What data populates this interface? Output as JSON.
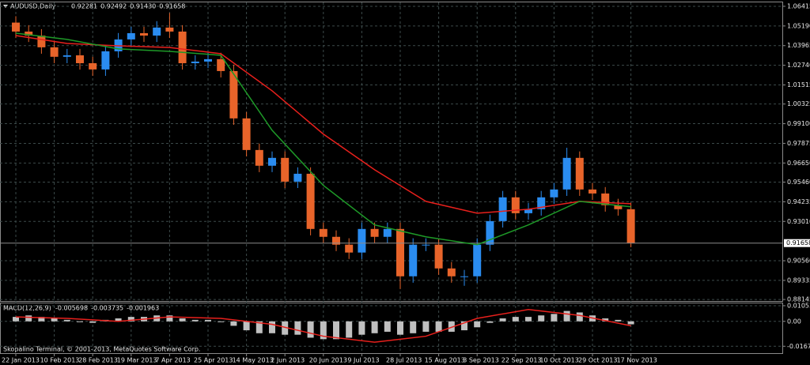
{
  "chart_data": [
    {
      "type": "candlestick",
      "title": "AUDUSD,Daily",
      "header_values": [
        "0.92281",
        "0.92492",
        "0.91430",
        "0.91658"
      ],
      "categories": [
        "22 Jan 2013",
        null,
        null,
        "10 Feb 2013",
        null,
        null,
        "28 Feb 2013",
        null,
        null,
        "19 Mar 2013",
        null,
        null,
        "7 Apr 2013",
        null,
        null,
        "25 Apr 2013",
        null,
        null,
        "14 May 2013",
        null,
        null,
        "2 Jun 2013",
        null,
        null,
        "20 Jun 2013",
        null,
        null,
        "9 Jul 2013",
        null,
        null,
        "28 Jul 2013",
        null,
        null,
        "15 Aug 2013",
        null,
        null,
        "3 Sep 2013",
        null,
        null,
        "22 Sep 2013",
        null,
        null,
        "10 Oct 2013",
        null,
        null,
        "29 Oct 2013",
        null,
        null,
        "17 Nov 2013"
      ],
      "open": [
        1.054,
        1.0484,
        1.0459,
        1.0386,
        1.0327,
        1.0336,
        1.0287,
        1.0248,
        1.0361,
        1.0435,
        1.0474,
        1.0459,
        1.0509,
        1.0484,
        1.0287,
        1.0297,
        1.0312,
        1.0238,
        0.9943,
        0.9746,
        0.9648,
        0.9697,
        0.9549,
        0.9598,
        0.9254,
        0.9205,
        0.9156,
        0.9107,
        0.9254,
        0.9205,
        0.9254,
        0.8959,
        0.9156,
        0.9156,
        0.9008,
        0.8959,
        0.8959,
        0.9156,
        0.9303,
        0.9451,
        0.9352,
        0.9377,
        0.9451,
        0.95,
        0.9697,
        0.95,
        0.9475,
        0.9402,
        0.9377
      ],
      "high": [
        1.058,
        1.0524,
        1.0499,
        1.0426,
        1.0376,
        1.0376,
        1.0327,
        1.0401,
        1.0475,
        1.0514,
        1.0514,
        1.0549,
        1.06,
        1.0524,
        1.0337,
        1.0352,
        1.0352,
        1.0278,
        0.9983,
        0.9786,
        0.9737,
        0.9737,
        0.9638,
        0.9638,
        0.9294,
        0.9245,
        0.9196,
        0.9294,
        0.9294,
        0.9294,
        0.9294,
        0.9196,
        0.9196,
        0.9196,
        0.9048,
        0.8999,
        0.9196,
        0.9343,
        0.9491,
        0.9491,
        0.9417,
        0.9491,
        0.954,
        0.976,
        0.9737,
        0.954,
        0.9515,
        0.9442,
        0.9417
      ],
      "low": [
        1.0444,
        1.0419,
        1.0346,
        1.0287,
        1.0287,
        1.0247,
        1.0208,
        1.0208,
        1.0321,
        1.0395,
        1.0419,
        1.0419,
        1.0444,
        1.0247,
        1.0247,
        1.0257,
        1.0198,
        0.9903,
        0.9706,
        0.9608,
        0.9608,
        0.9509,
        0.9509,
        0.9214,
        0.9165,
        0.9116,
        0.9067,
        0.9067,
        0.9165,
        0.9165,
        0.888,
        0.8919,
        0.9116,
        0.8968,
        0.8919,
        0.89,
        0.8919,
        0.9116,
        0.9263,
        0.9312,
        0.9312,
        0.9337,
        0.9411,
        0.946,
        0.946,
        0.9435,
        0.9362,
        0.9337,
        0.914
      ],
      "close": [
        1.0484,
        1.0459,
        1.0386,
        1.0327,
        1.0336,
        1.0287,
        1.0248,
        1.0361,
        1.0435,
        1.0474,
        1.0459,
        1.0509,
        1.0484,
        1.0287,
        1.0297,
        1.0312,
        1.0238,
        0.9943,
        0.9746,
        0.9648,
        0.9697,
        0.9549,
        0.9598,
        0.9254,
        0.9205,
        0.9156,
        0.9107,
        0.9254,
        0.9205,
        0.9254,
        0.8959,
        0.9156,
        0.9156,
        0.9008,
        0.8959,
        0.8959,
        0.9156,
        0.9303,
        0.9451,
        0.9352,
        0.9377,
        0.9451,
        0.95,
        0.9697,
        0.95,
        0.9475,
        0.9402,
        0.9377,
        0.9166
      ],
      "up_color": "#2a8cf0",
      "down_color": "#e8642a",
      "lines": [
        {
          "color": "#e8201c",
          "x": [
            0,
            4,
            8,
            12,
            16,
            20,
            24,
            28,
            32,
            36,
            40,
            44,
            48
          ],
          "values": [
            1.0459,
            1.041,
            1.0395,
            1.0385,
            1.0346,
            1.0115,
            0.9845,
            0.9623,
            0.9426,
            0.9352,
            0.9377,
            0.9426,
            0.9411
          ]
        },
        {
          "color": "#1e9a28",
          "x": [
            0,
            4,
            8,
            12,
            16,
            20,
            24,
            28,
            32,
            36,
            40,
            44,
            48
          ],
          "values": [
            1.0474,
            1.0435,
            1.0376,
            1.0361,
            1.0336,
            0.9869,
            0.9525,
            0.9279,
            0.9205,
            0.9156,
            0.9279,
            0.9426,
            0.9392
          ]
        }
      ],
      "current_price": {
        "value": 0.91658,
        "label": "0.91658"
      },
      "ylim": [
        0.8805,
        1.0666
      ],
      "yticks": [
        {
          "value": 1.06415,
          "label": "1.06415"
        },
        {
          "value": 1.0519,
          "label": "1.05190"
        },
        {
          "value": 1.03965,
          "label": "1.03965"
        },
        {
          "value": 1.0274,
          "label": "1.02740"
        },
        {
          "value": 1.01515,
          "label": "1.01515"
        },
        {
          "value": 1.00325,
          "label": "1.00325"
        },
        {
          "value": 0.991,
          "label": "0.99100"
        },
        {
          "value": 0.97875,
          "label": "0.97875"
        },
        {
          "value": 0.9665,
          "label": "0.96650"
        },
        {
          "value": 0.9546,
          "label": "0.95460"
        },
        {
          "value": 0.94235,
          "label": "0.94235"
        },
        {
          "value": 0.9301,
          "label": "0.93010"
        },
        {
          "value": 0.9056,
          "label": "0.90560"
        },
        {
          "value": 0.89335,
          "label": "0.89335"
        },
        {
          "value": 0.88145,
          "label": "0.88145"
        }
      ],
      "grid": true
    },
    {
      "type": "macd",
      "title": "MACD(12,26,9)",
      "header_values": [
        "-0.005698",
        "-0.003735",
        "-0.001963"
      ],
      "annotation": "Skopalino Terminal, © 2001-2013, MetaQuotes Software Corp.",
      "values": [
        0.003,
        0.004,
        0.003,
        0.002,
        0.001,
        0.0,
        -0.001,
        0.001,
        0.002,
        0.003,
        0.003,
        0.004,
        0.004,
        0.002,
        0.001,
        0.001,
        0.0,
        -0.003,
        -0.006,
        -0.008,
        -0.008,
        -0.009,
        -0.009,
        -0.011,
        -0.012,
        -0.012,
        -0.011,
        -0.009,
        -0.008,
        -0.007,
        -0.009,
        -0.008,
        -0.007,
        -0.007,
        -0.007,
        -0.006,
        -0.004,
        -0.001,
        0.002,
        0.003,
        0.003,
        0.004,
        0.005,
        0.007,
        0.006,
        0.004,
        0.002,
        0.001,
        -0.002
      ],
      "color": "#c0c0c0",
      "lines": [
        {
          "color": "#e8201c",
          "x": [
            0,
            4,
            8,
            12,
            16,
            20,
            24,
            28,
            32,
            36,
            40,
            44,
            48
          ],
          "values": [
            0.003,
            0.002,
            0.0,
            0.003,
            0.002,
            -0.002,
            -0.01,
            -0.014,
            -0.01,
            0.002,
            0.008,
            0.004,
            -0.003
          ]
        }
      ],
      "ylim": [
        -0.0214,
        0.0121
      ],
      "yticks": [
        0.010535,
        {
          "value": 0,
          "label": "0.00"
        },
        -0.016754
      ],
      "grid": true
    }
  ]
}
